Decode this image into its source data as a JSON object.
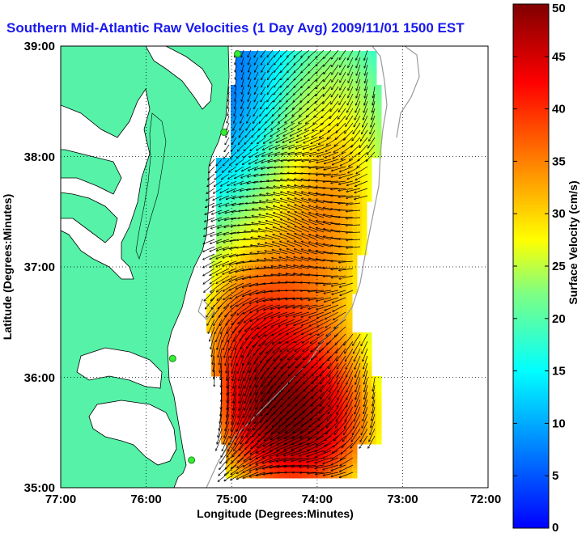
{
  "title": "Southern Mid-Atlantic Raw Velocities (1 Day Avg) 2009/11/01 1500 EST",
  "x_axis": {
    "label": "Longitude (Degrees:Minutes)",
    "ticks": [
      "77:00",
      "76:00",
      "75:00",
      "74:00",
      "73:00",
      "72:00"
    ]
  },
  "y_axis": {
    "label": "Latitude (Degrees:Minutes)",
    "ticks": [
      "39:00",
      "38:00",
      "37:00",
      "36:00",
      "35:00"
    ]
  },
  "colorbar": {
    "label": "Surface Velocity (cm/s)",
    "ticks": [
      "50",
      "45",
      "40",
      "35",
      "30",
      "25",
      "20",
      "15",
      "10",
      "5",
      "0"
    ],
    "min": 0,
    "max": 50,
    "colormap": "jet"
  },
  "colors": {
    "land": "#55f2a8",
    "title": "#1a1aee",
    "coastline": "#000000",
    "isobath": "#9a9a9a",
    "station": "#33ee33",
    "grid": "#000000"
  },
  "chart_data": {
    "type": "heatmap",
    "extent": {
      "lon_min": -77,
      "lon_max": -72,
      "lat_min": 35,
      "lat_max": 39
    },
    "grid_lines": "dotted",
    "stations": [
      {
        "lon": -74.93,
        "lat": 38.93
      },
      {
        "lon": -75.09,
        "lat": 38.22
      },
      {
        "lon": -75.69,
        "lat": 36.17
      },
      {
        "lon": -75.47,
        "lat": 35.25
      }
    ]
  }
}
